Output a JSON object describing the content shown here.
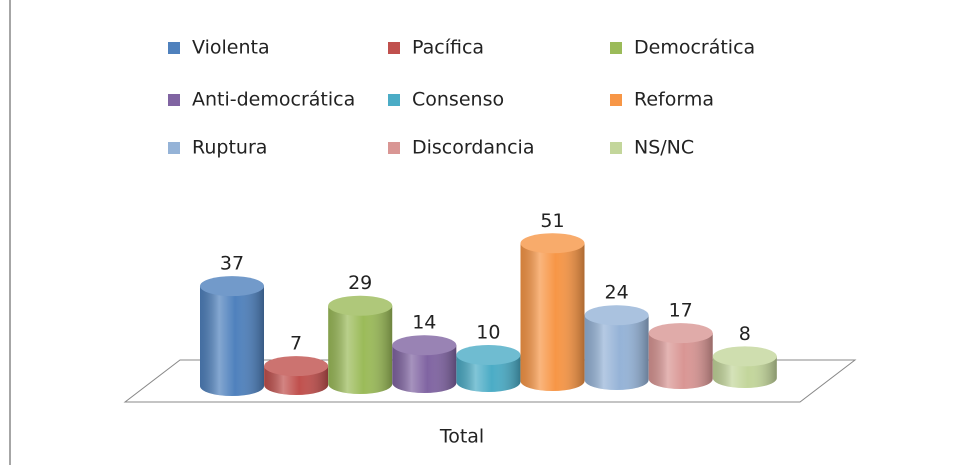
{
  "chart_data": {
    "type": "bar",
    "categories": [
      "Total"
    ],
    "series": [
      {
        "name": "Violenta",
        "color": "#4f81bd",
        "values": [
          37
        ]
      },
      {
        "name": "Pacífica",
        "color": "#c0504d",
        "values": [
          7
        ]
      },
      {
        "name": "Democrática",
        "color": "#9bbb59",
        "values": [
          29
        ]
      },
      {
        "name": "Anti-democrática",
        "color": "#8064a2",
        "values": [
          14
        ]
      },
      {
        "name": "Consenso",
        "color": "#4bacc6",
        "values": [
          10
        ]
      },
      {
        "name": "Reforma",
        "color": "#f79646",
        "values": [
          51
        ]
      },
      {
        "name": "Ruptura",
        "color": "#95b3d7",
        "values": [
          24
        ]
      },
      {
        "name": "Discordancia",
        "color": "#d99694",
        "values": [
          17
        ]
      },
      {
        "name": "NS/NC",
        "color": "#c3d69b",
        "values": [
          8
        ]
      }
    ]
  }
}
